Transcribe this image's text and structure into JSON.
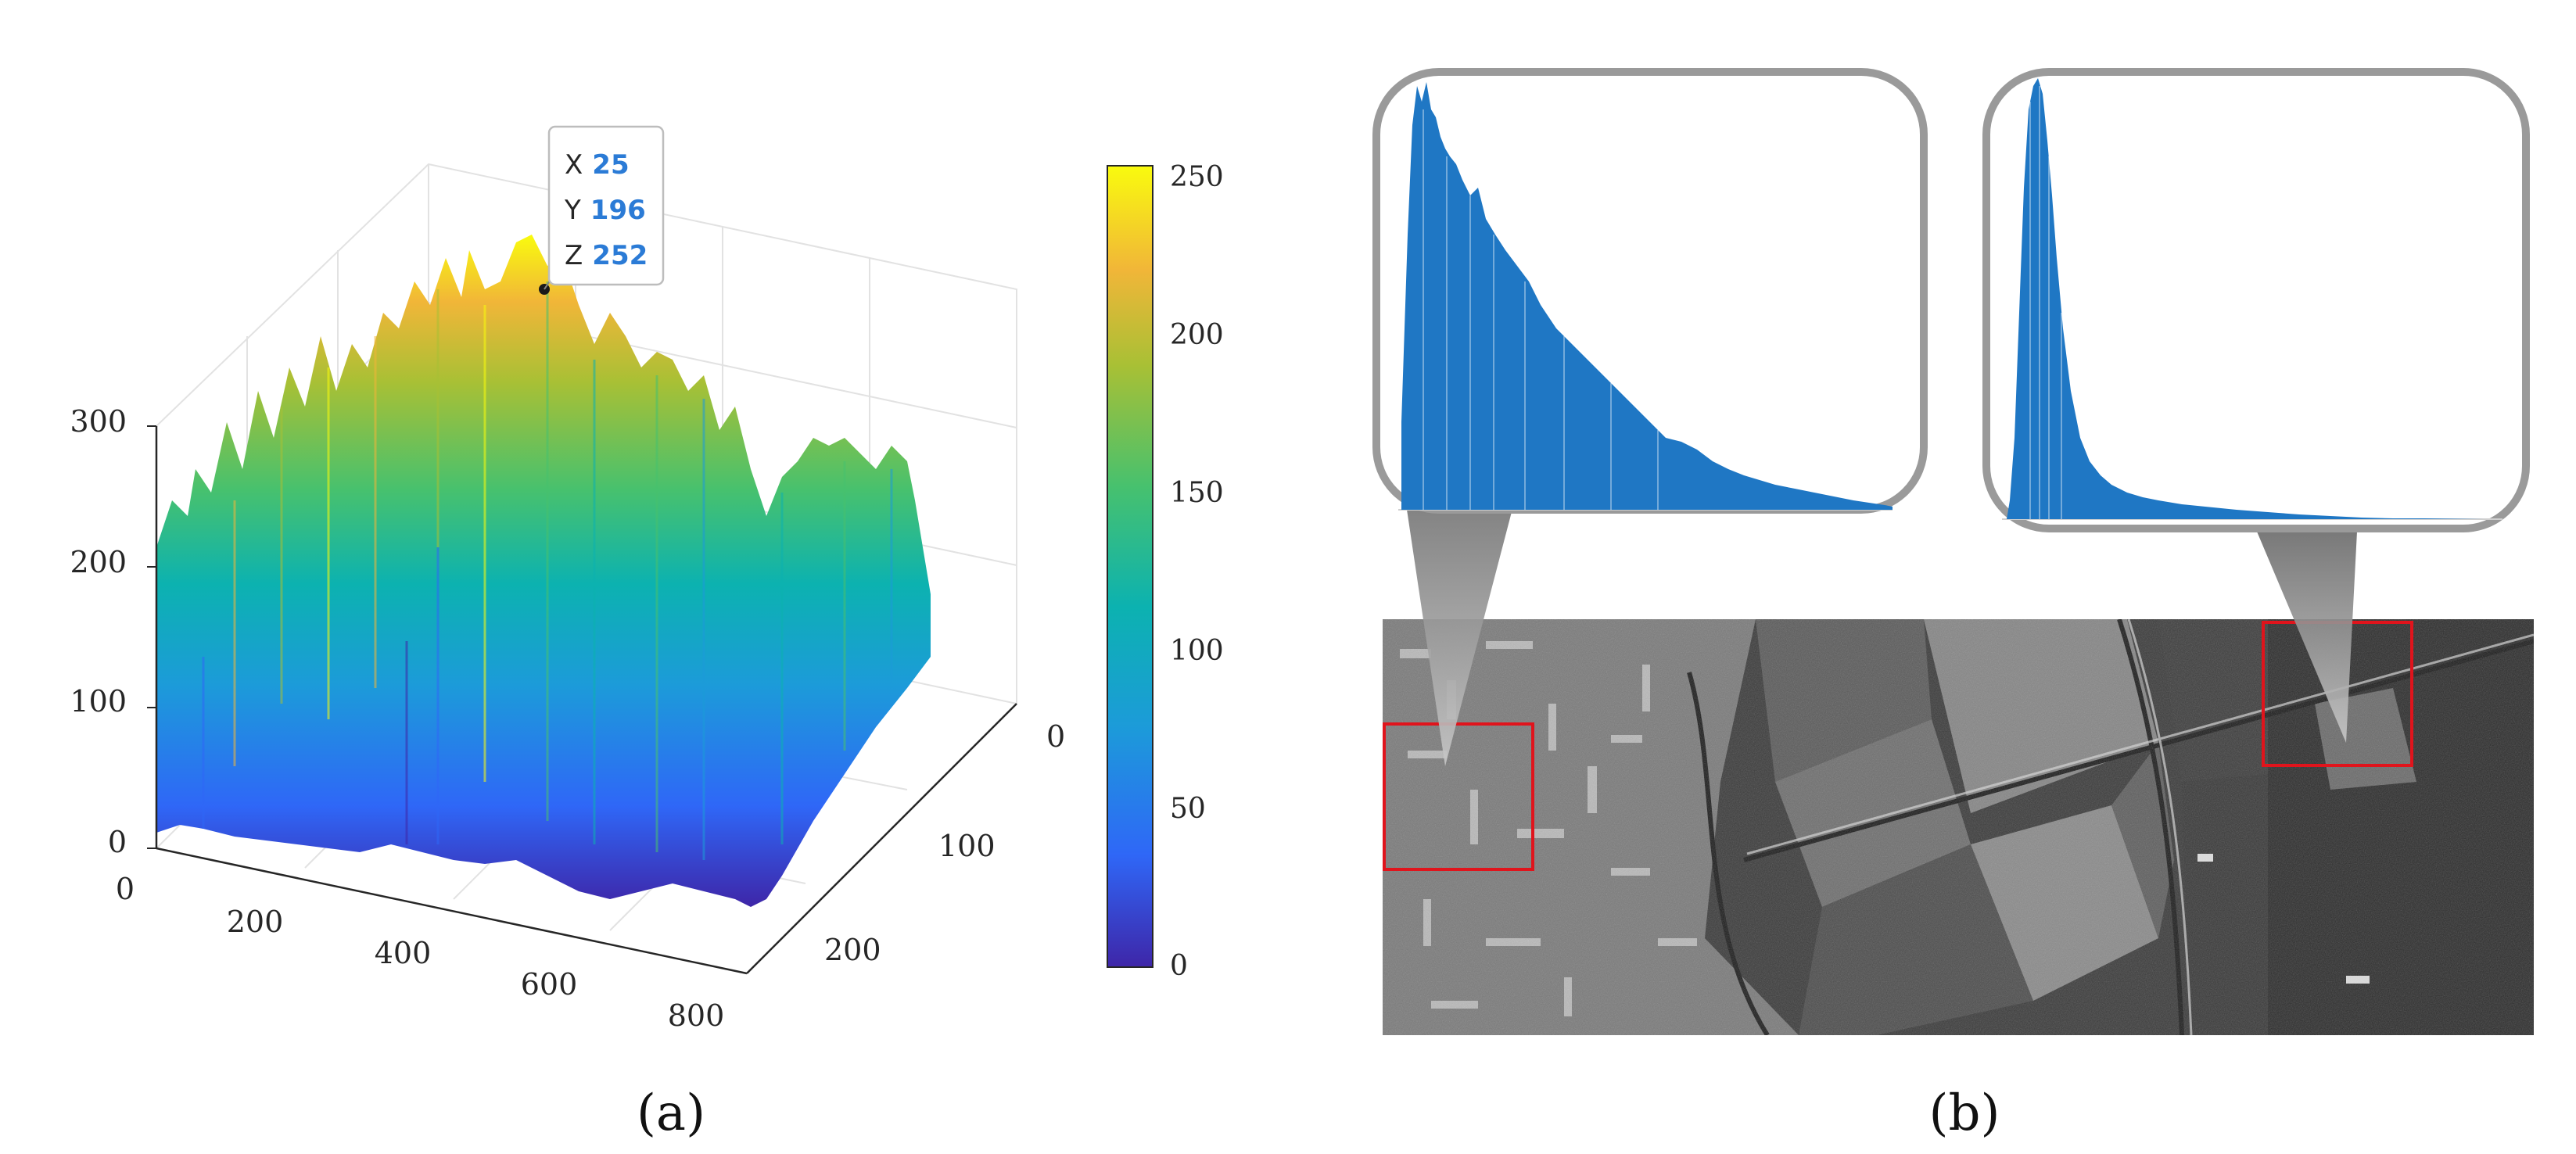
{
  "panel_a": {
    "caption": "(a)",
    "datatip": {
      "rows": [
        {
          "key": "X",
          "value": "25"
        },
        {
          "key": "Y",
          "value": "196"
        },
        {
          "key": "Z",
          "value": "252"
        }
      ],
      "value_color": "#2b7bd6"
    },
    "z_ticks": [
      "0",
      "100",
      "200",
      "300"
    ],
    "x_ticks": [
      "0",
      "200",
      "400",
      "600",
      "800"
    ],
    "y_ticks": [
      "0",
      "100",
      "200"
    ],
    "colorbar_ticks": [
      "0",
      "50",
      "100",
      "150",
      "200",
      "250"
    ],
    "colormap": [
      "#3e26a8",
      "#2f67f7",
      "#1c9bd9",
      "#0cb2b0",
      "#47c16e",
      "#a8c035",
      "#f1b638",
      "#f9fb0e"
    ]
  },
  "panel_b": {
    "caption": "(b)",
    "histogram_color": "#1f77c4",
    "roi_color": "#e0141c"
  },
  "chart_data": [
    {
      "type": "surface",
      "xlim": [
        0,
        800
      ],
      "ylim": [
        0,
        250
      ],
      "zlim": [
        0,
        300
      ],
      "color_range": [
        0,
        255
      ],
      "colormap_name": "parula",
      "datatip": {
        "X": 25,
        "Y": 196,
        "Z": 252
      }
    },
    {
      "type": "bar",
      "region": "left red box (urban)",
      "shape": "right-skewed, slow decay"
    },
    {
      "type": "bar",
      "region": "right red box (field)",
      "shape": "sharp peak near low intensity, fast decay"
    }
  ]
}
